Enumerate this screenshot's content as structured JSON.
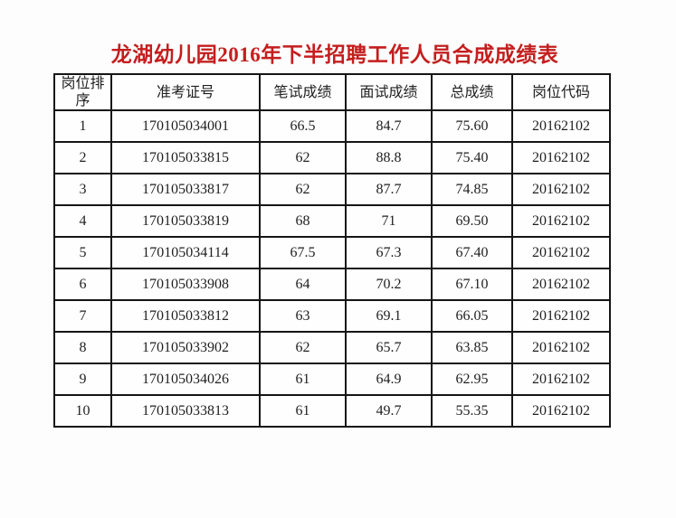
{
  "page": {
    "background_color": "#fdfdfd",
    "text_color": "#1f1f1f",
    "border_color": "#151515"
  },
  "title": {
    "text": "龙湖幼儿园2016年下半招聘工作人员合成成绩表",
    "color": "#c41e1e"
  },
  "table": {
    "columns": [
      {
        "key": "rank",
        "label": "岗位排序"
      },
      {
        "key": "ticket",
        "label": "准考证号"
      },
      {
        "key": "written",
        "label": "笔试成绩"
      },
      {
        "key": "interview",
        "label": "面试成绩"
      },
      {
        "key": "total",
        "label": "总成绩"
      },
      {
        "key": "code",
        "label": "岗位代码"
      }
    ],
    "rows": [
      [
        "1",
        "170105034001",
        "66.5",
        "84.7",
        "75.60",
        "20162102"
      ],
      [
        "2",
        "170105033815",
        "62",
        "88.8",
        "75.40",
        "20162102"
      ],
      [
        "3",
        "170105033817",
        "62",
        "87.7",
        "74.85",
        "20162102"
      ],
      [
        "4",
        "170105033819",
        "68",
        "71",
        "69.50",
        "20162102"
      ],
      [
        "5",
        "170105034114",
        "67.5",
        "67.3",
        "67.40",
        "20162102"
      ],
      [
        "6",
        "170105033908",
        "64",
        "70.2",
        "67.10",
        "20162102"
      ],
      [
        "7",
        "170105033812",
        "63",
        "69.1",
        "66.05",
        "20162102"
      ],
      [
        "8",
        "170105033902",
        "62",
        "65.7",
        "63.85",
        "20162102"
      ],
      [
        "9",
        "170105034026",
        "61",
        "64.9",
        "62.95",
        "20162102"
      ],
      [
        "10",
        "170105033813",
        "61",
        "49.7",
        "55.35",
        "20162102"
      ]
    ]
  }
}
